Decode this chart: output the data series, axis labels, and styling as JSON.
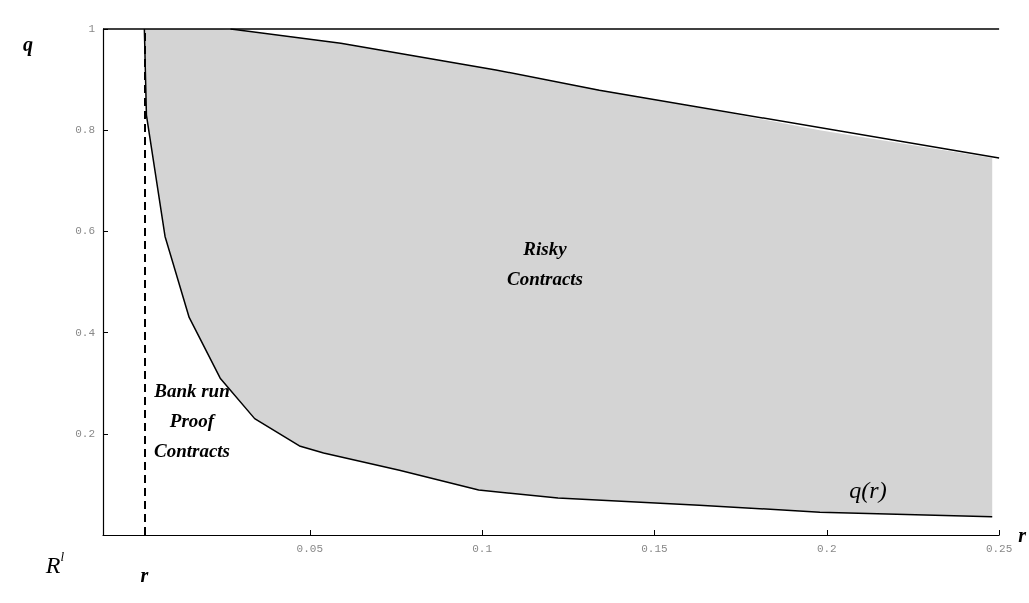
{
  "chart_data": {
    "type": "line",
    "xlabel": "r",
    "ylabel": "q",
    "xlim": [
      -0.01,
      0.25
    ],
    "ylim": [
      0,
      1
    ],
    "xticks": [
      0.05,
      0.1,
      0.15,
      0.2,
      0.25
    ],
    "yticks": [
      0.2,
      0.4,
      0.6,
      0.8,
      1
    ],
    "grid": false,
    "marker": "none",
    "series": [
      {
        "color": "#000000",
        "x": [
          0.002,
          0.0026,
          0.008,
          0.015,
          0.024,
          0.034,
          0.047,
          0.054,
          0.076,
          0.099,
          0.122,
          0.163,
          0.198,
          0.248
        ],
        "values": [
          1,
          0.83,
          0.59,
          0.43,
          0.31,
          0.23,
          0.176,
          0.162,
          0.128,
          0.089,
          0.073,
          0.059,
          0.045,
          0.036
        ],
        "lower": [
          1,
          0.83,
          0.59,
          0.43,
          0.31,
          0.23,
          0.176,
          0.162,
          0.128,
          0.089,
          0.073,
          0.059,
          0.045,
          0.036
        ],
        "upper": [
          1,
          1,
          1,
          1,
          1,
          0.994,
          0.983,
          0.977,
          0.952,
          0.925,
          0.895,
          0.845,
          0.8,
          0.745
        ]
      },
      {
        "color": "#000000",
        "x": [
          0.027,
          0.059,
          0.104,
          0.134,
          0.25
        ],
        "values": [
          1,
          0.972,
          0.919,
          0.879,
          0.745
        ]
      }
    ],
    "ref_lines": [
      {
        "axis": "y",
        "value": 1,
        "label": null,
        "color": "#000000",
        "line_style": "solid"
      },
      {
        "axis": "x",
        "value": 0.002,
        "label": "r",
        "color": "#000000",
        "line_style": "dashed"
      }
    ],
    "annotations": [
      "Risky\nContracts",
      "Bank run\nProof\nContracts",
      "q(r)",
      "R$^{l}$"
    ]
  }
}
